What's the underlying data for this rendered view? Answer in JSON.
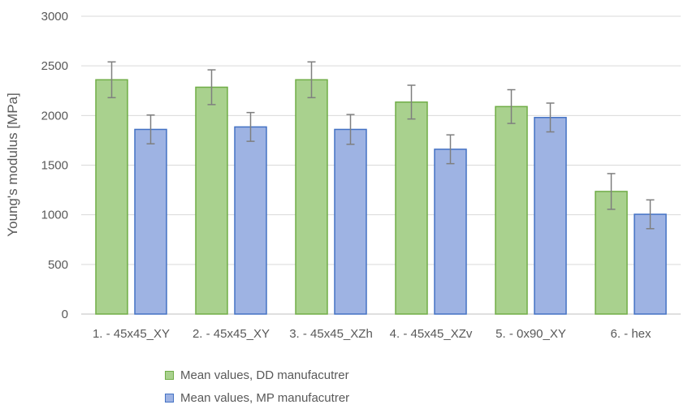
{
  "chart_data": {
    "type": "bar",
    "title": "",
    "xlabel": "",
    "ylabel": "Young's modulus [MPa]",
    "ylim": [
      0,
      3000
    ],
    "yticks": [
      0,
      500,
      1000,
      1500,
      2000,
      2500,
      3000
    ],
    "grid": true,
    "legend_position": "bottom",
    "categories": [
      "1. - 45x45_XY",
      "2. - 45x45_XY",
      "3. - 45x45_XZh",
      "4. - 45x45_XZv",
      "5. - 0x90_XY",
      "6. - hex"
    ],
    "series": [
      {
        "name": "Mean values, DD manufacutrer",
        "color": "#a9d18e",
        "edge_color": "#70ad47",
        "values": [
          2360,
          2285,
          2360,
          2135,
          2090,
          1235
        ],
        "error": [
          180,
          175,
          180,
          170,
          170,
          180
        ]
      },
      {
        "name": "Mean values, MP manufacutrer",
        "color": "#9eb3e3",
        "edge_color": "#4472c4",
        "values": [
          1860,
          1885,
          1860,
          1660,
          1980,
          1005
        ],
        "error": [
          145,
          145,
          150,
          145,
          145,
          145
        ]
      }
    ]
  }
}
